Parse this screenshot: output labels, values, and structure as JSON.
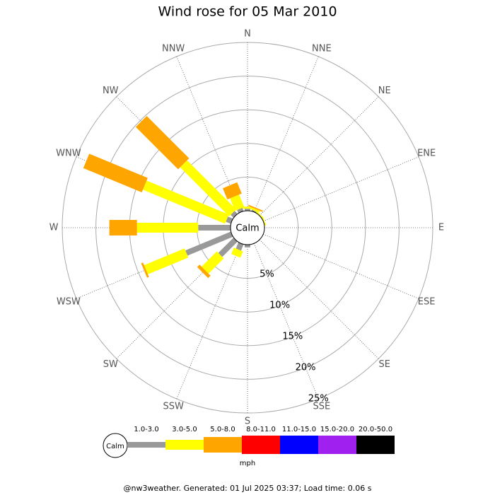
{
  "chart_data": {
    "type": "wind-rose",
    "title": "Wind rose for 05 Mar 2010",
    "categories": [
      "N",
      "NNE",
      "NE",
      "ENE",
      "E",
      "ESE",
      "SE",
      "SSE",
      "S",
      "SSW",
      "SW",
      "WSW",
      "W",
      "WNW",
      "NW",
      "NNW"
    ],
    "series": [
      {
        "name": "1.0-3.0",
        "color": "#999999",
        "values": [
          0.3,
          0.2,
          0,
          0,
          0,
          0,
          0,
          0,
          0.4,
          1.0,
          3.2,
          7.3,
          4.8,
          0.8,
          0.6,
          0.5
        ]
      },
      {
        "name": "3.0-5.0",
        "color": "#ffff00",
        "values": [
          0.3,
          0.3,
          0.2,
          0.2,
          0,
          0,
          0,
          0,
          0,
          1.0,
          3.2,
          6.5,
          9.1,
          13.2,
          10.3,
          2.0
        ]
      },
      {
        "name": "5.0-8.0",
        "color": "#ffa500",
        "values": [
          0,
          0.2,
          0,
          0,
          0,
          0,
          0,
          0,
          0,
          0,
          0.5,
          0.3,
          4.1,
          9.4,
          8.9,
          1.8
        ]
      },
      {
        "name": "8.0-11.0",
        "color": "#ff0000",
        "values": [
          0,
          0,
          0,
          0,
          0,
          0,
          0,
          0,
          0,
          0,
          0,
          0,
          0,
          0,
          0,
          0
        ]
      },
      {
        "name": "11.0-15.0",
        "color": "#0000ff",
        "values": [
          0,
          0,
          0,
          0,
          0,
          0,
          0,
          0,
          0,
          0,
          0,
          0,
          0,
          0,
          0,
          0
        ]
      },
      {
        "name": "15.0-20.0",
        "color": "#a020f0",
        "values": [
          0,
          0,
          0,
          0,
          0,
          0,
          0,
          0,
          0,
          0,
          0,
          0,
          0,
          0,
          0,
          0
        ]
      },
      {
        "name": "20.0-50.0",
        "color": "#000000",
        "values": [
          0,
          0,
          0,
          0,
          0,
          0,
          0,
          0,
          0,
          0,
          0,
          0,
          0,
          0,
          0,
          0
        ]
      }
    ],
    "rlim": [
      0,
      25
    ],
    "rticks": [
      {
        "value": 5,
        "label": "5%"
      },
      {
        "value": 10,
        "label": "10%"
      },
      {
        "value": 15,
        "label": "15%"
      },
      {
        "value": 20,
        "label": "20%"
      },
      {
        "value": 25,
        "label": "25%"
      }
    ],
    "calm_label": "Calm",
    "unit_label": "mph",
    "footer": "@nw3weather. Generated: 01 Jul 2025 03:37; Load time: 0.06 s"
  }
}
